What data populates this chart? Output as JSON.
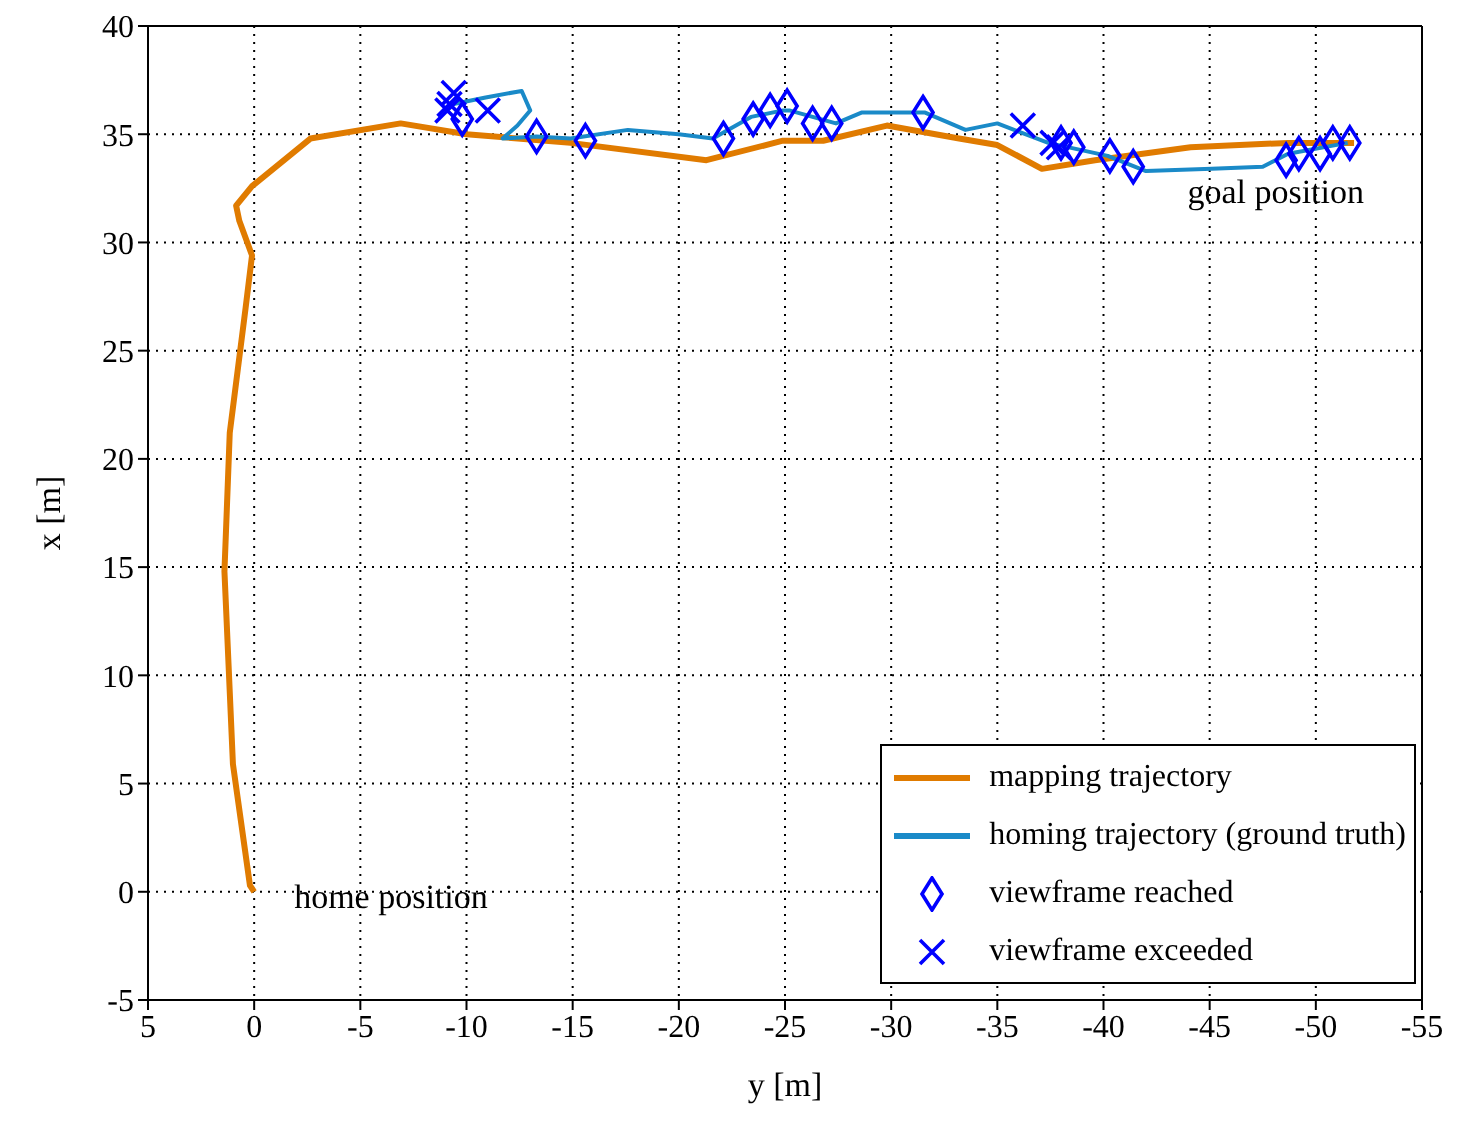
{
  "chart_data": {
    "type": "line",
    "xlabel": "y [m]",
    "ylabel": "x [m]",
    "xlim": [
      5,
      -55
    ],
    "xticks": [
      5,
      0,
      -5,
      -10,
      -15,
      -20,
      -25,
      -30,
      -35,
      -40,
      -45,
      -50,
      -55
    ],
    "ylim": [
      -5,
      40
    ],
    "yticks": [
      -5,
      0,
      5,
      10,
      15,
      20,
      25,
      30,
      35,
      40
    ],
    "grid": true,
    "legend": "bottom right",
    "line_style": "solid",
    "series": [
      {
        "name": "mapping trajectory",
        "color": "#e07b00",
        "marker": "none",
        "x": [
          0,
          0.2,
          1.0,
          1.4,
          1.15,
          0.4,
          0.1,
          0.7,
          0.85,
          0.1,
          -2.65,
          -6.9,
          -10,
          -14.9,
          -21.3,
          -24.9,
          -26.8,
          -29.8,
          -33.2,
          -35,
          -37.1,
          -39.6,
          -44.1,
          -48.7,
          -51.8
        ],
        "values": [
          0,
          0.3,
          5.9,
          14.8,
          21.2,
          27,
          29.4,
          31,
          31.7,
          32.6,
          34.8,
          35.5,
          35,
          34.6,
          33.8,
          34.7,
          34.7,
          35.4,
          34.8,
          34.5,
          33.4,
          33.8,
          34.4,
          34.6,
          34.6
        ]
      },
      {
        "name": "homing trajectory (ground truth)",
        "color": "#1a8ac8",
        "marker": "none",
        "x": [
          -9.4,
          -10.9,
          -12.6,
          -13.0,
          -12.4,
          -11.7,
          -13.3,
          -14.9,
          -17.6,
          -20.0,
          -21.6,
          -23.4,
          -24.9,
          -25.2,
          -27.4,
          -28.6,
          -31.6,
          -33.5,
          -35.0,
          -37.4,
          -40.2,
          -42.0,
          -45.1,
          -47.5,
          -48.7,
          -51.5
        ],
        "values": [
          36.4,
          36.7,
          37.0,
          36.1,
          35.4,
          34.8,
          34.9,
          34.8,
          35.2,
          35.0,
          34.8,
          35.8,
          36.1,
          36.1,
          35.5,
          36.0,
          36.0,
          35.2,
          35.5,
          34.6,
          34.0,
          33.3,
          33.4,
          33.5,
          34.1,
          34.6
        ]
      },
      {
        "name": "viewframe reached",
        "type": "scatter",
        "color": "#0000ff",
        "marker": "diamond",
        "x": [
          -9.8,
          -13.3,
          -15.6,
          -22.1,
          -23.5,
          -24.3,
          -25.1,
          -26.3,
          -27.2,
          -31.5,
          -38.0,
          -38.6,
          -40.3,
          -41.4,
          -48.6,
          -49.2,
          -50.2,
          -50.8,
          -51.6
        ],
        "values": [
          35.7,
          34.9,
          34.7,
          34.8,
          35.7,
          36.1,
          36.3,
          35.5,
          35.5,
          36.0,
          34.6,
          34.4,
          34.0,
          33.5,
          33.8,
          34.1,
          34.1,
          34.6,
          34.6
        ]
      },
      {
        "name": "viewframe exceeded",
        "type": "scatter",
        "color": "#0000ff",
        "marker": "cross",
        "x": [
          -9.2,
          -9.4,
          -9.1,
          -11.0,
          -36.2,
          -37.6,
          -37.9
        ],
        "values": [
          36.4,
          36.9,
          36.1,
          36.1,
          35.4,
          34.6,
          34.4
        ]
      }
    ],
    "annotations": [
      {
        "text": "home position",
        "x": 0,
        "y": 0
      },
      {
        "text": "goal position",
        "x": -51.8,
        "y": 34.6
      }
    ]
  }
}
